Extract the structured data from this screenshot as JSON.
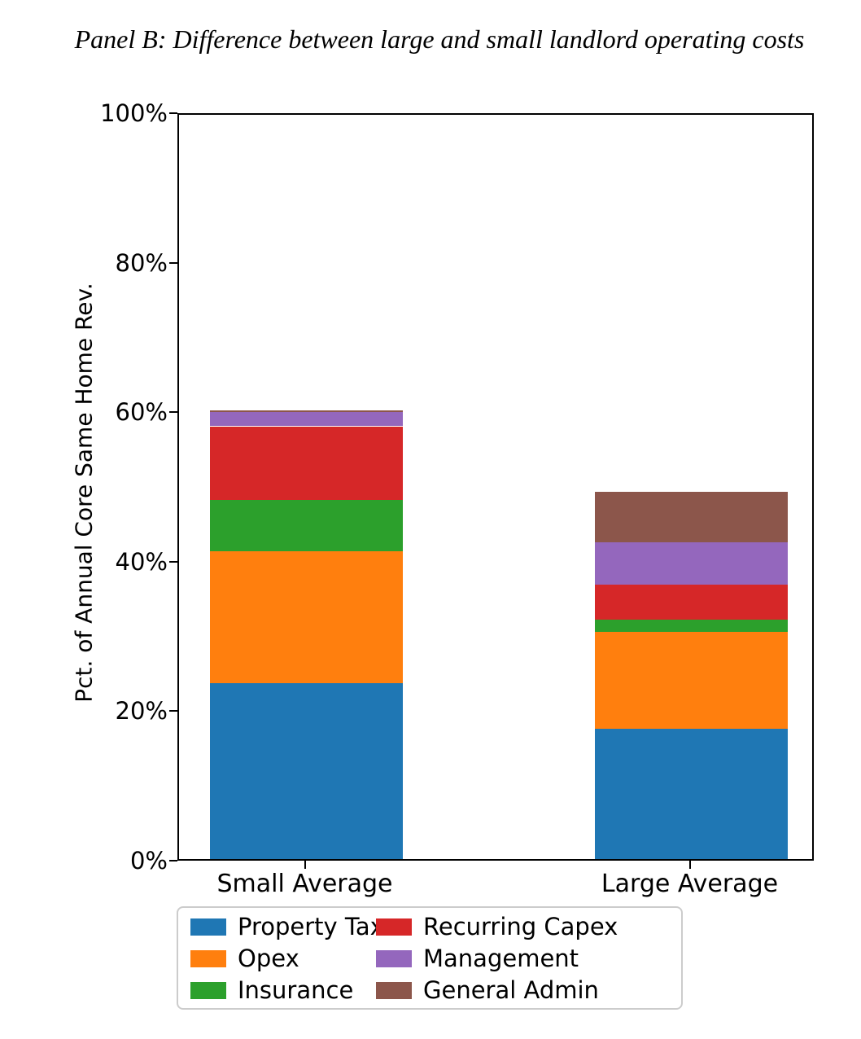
{
  "chart_data": {
    "type": "bar",
    "stacked": true,
    "title": "Panel B: Difference between large and small landlord operating costs",
    "ylabel": "Pct. of Annual Core Same Home Rev.",
    "xlabel": "",
    "categories": [
      "Small Average",
      "Large Average"
    ],
    "series": [
      {
        "name": "Property Tax",
        "color": "#1f77b4",
        "values": [
          23.5,
          17.4
        ]
      },
      {
        "name": "Opex",
        "color": "#ff7f0e",
        "values": [
          17.7,
          13.0
        ]
      },
      {
        "name": "Insurance",
        "color": "#2ca02c",
        "values": [
          6.8,
          1.6
        ]
      },
      {
        "name": "Recurring Capex",
        "color": "#d62728",
        "values": [
          9.9,
          4.7
        ]
      },
      {
        "name": "Management",
        "color": "#9467bd",
        "values": [
          1.9,
          5.7
        ]
      },
      {
        "name": "General Admin",
        "color": "#8c564b",
        "values": [
          0.2,
          6.7
        ]
      }
    ],
    "ylim": [
      0,
      100
    ],
    "yticks": [
      {
        "value": 0,
        "label": "0%"
      },
      {
        "value": 20,
        "label": "20%"
      },
      {
        "value": 40,
        "label": "40%"
      },
      {
        "value": 60,
        "label": "60%"
      },
      {
        "value": 80,
        "label": "80%"
      },
      {
        "value": 100,
        "label": "100%"
      }
    ],
    "grid": false,
    "legend": {
      "position": "bottom",
      "columns": 2
    }
  }
}
